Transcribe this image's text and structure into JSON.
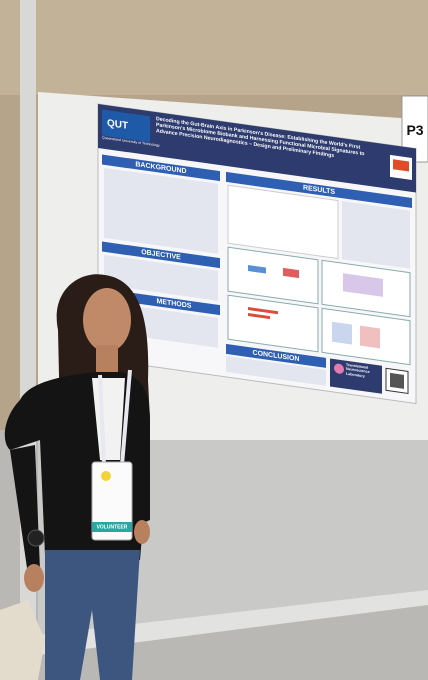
{
  "poster": {
    "logo": "QUT",
    "institution": "Queensland University of Technology",
    "title": "Decoding the Gut-Brain Axis in Parkinson's Disease: Establishing the World's First Parkinson's Microbiome Biobank and Harnessing Functional Microbial Signatures to Advance Precision Neurodiagnostics – Design and Preliminary Findings",
    "sections": [
      "BACKGROUND",
      "OBJECTIVE",
      "METHODS",
      "RESULTS",
      "CONCLUSION"
    ],
    "lab": "Translational Neuroscience Laboratory"
  },
  "board_number": "P3",
  "badge": {
    "label": "VOLUNTEER"
  }
}
